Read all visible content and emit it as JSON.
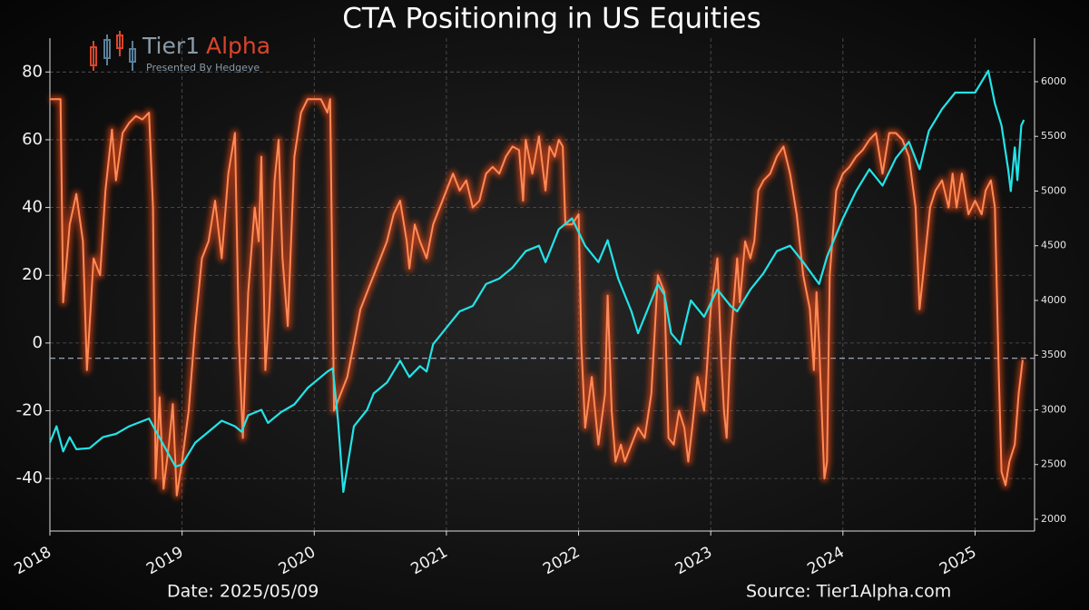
{
  "chart_data": {
    "type": "line",
    "title": "CTA Positioning in US Equities",
    "logo": {
      "brand": "Tier1",
      "accent": "Alpha",
      "tagline": "Presented By Hedgeye"
    },
    "footer_left": "Date: 2025/05/09",
    "footer_right": "Source: Tier1Alpha.com",
    "xlim": [
      2018,
      2025.45
    ],
    "xticks": [
      2018,
      2019,
      2020,
      2021,
      2022,
      2023,
      2024,
      2025
    ],
    "ylim": [
      -55.5,
      90
    ],
    "yticks": [
      -40,
      -20,
      0,
      20,
      40,
      60,
      80
    ],
    "y2lim": [
      1892,
      6398
    ],
    "y2ticks": [
      2000,
      2500,
      3000,
      3500,
      4000,
      4500,
      5000,
      5500,
      6000
    ],
    "reference_line": -4.5,
    "grid": true,
    "series": [
      {
        "color": "#ff4a12",
        "glow": true,
        "axis": "y",
        "x": [
          2018.0,
          2018.08,
          2018.1,
          2018.15,
          2018.2,
          2018.25,
          2018.28,
          2018.33,
          2018.38,
          2018.42,
          2018.47,
          2018.5,
          2018.55,
          2018.6,
          2018.65,
          2018.7,
          2018.75,
          2018.78,
          2018.8,
          2018.83,
          2018.86,
          2018.9,
          2018.93,
          2018.96,
          2019.0,
          2019.05,
          2019.1,
          2019.15,
          2019.2,
          2019.25,
          2019.3,
          2019.35,
          2019.4,
          2019.43,
          2019.46,
          2019.5,
          2019.55,
          2019.58,
          2019.6,
          2019.63,
          2019.66,
          2019.7,
          2019.73,
          2019.76,
          2019.8,
          2019.85,
          2019.9,
          2019.95,
          2020.05,
          2020.1,
          2020.12,
          2020.15,
          2020.2,
          2020.25,
          2020.3,
          2020.35,
          2020.4,
          2020.45,
          2020.5,
          2020.55,
          2020.6,
          2020.65,
          2020.7,
          2020.72,
          2020.76,
          2020.8,
          2020.85,
          2020.9,
          2020.95,
          2021.0,
          2021.05,
          2021.1,
          2021.15,
          2021.2,
          2021.25,
          2021.3,
          2021.35,
          2021.4,
          2021.45,
          2021.5,
          2021.55,
          2021.58,
          2021.6,
          2021.65,
          2021.7,
          2021.75,
          2021.78,
          2021.82,
          2021.85,
          2021.88,
          2021.9,
          2021.95,
          2022.0,
          2022.02,
          2022.05,
          2022.1,
          2022.15,
          2022.2,
          2022.22,
          2022.25,
          2022.28,
          2022.32,
          2022.35,
          2022.4,
          2022.45,
          2022.5,
          2022.55,
          2022.6,
          2022.65,
          2022.68,
          2022.72,
          2022.76,
          2022.8,
          2022.83,
          2022.86,
          2022.9,
          2022.95,
          2023.0,
          2023.05,
          2023.08,
          2023.1,
          2023.12,
          2023.15,
          2023.2,
          2023.22,
          2023.26,
          2023.3,
          2023.33,
          2023.36,
          2023.4,
          2023.45,
          2023.5,
          2023.55,
          2023.6,
          2023.65,
          2023.7,
          2023.75,
          2023.78,
          2023.8,
          2023.82,
          2023.86,
          2023.88,
          2023.9,
          2023.95,
          2024.0,
          2024.05,
          2024.1,
          2024.15,
          2024.2,
          2024.25,
          2024.3,
          2024.35,
          2024.4,
          2024.45,
          2024.5,
          2024.55,
          2024.58,
          2024.62,
          2024.66,
          2024.7,
          2024.75,
          2024.8,
          2024.83,
          2024.86,
          2024.9,
          2024.95,
          2025.0,
          2025.05,
          2025.08,
          2025.12,
          2025.15,
          2025.18,
          2025.2,
          2025.23,
          2025.26,
          2025.3,
          2025.33,
          2025.36
        ],
        "values": [
          72,
          72,
          12,
          35,
          44,
          30,
          -8,
          25,
          20,
          45,
          63,
          48,
          62,
          65,
          67,
          66,
          68,
          40,
          -40,
          -16,
          -43,
          -30,
          -18,
          -45,
          -35,
          -20,
          5,
          25,
          30,
          42,
          25,
          50,
          62,
          0,
          -28,
          15,
          40,
          30,
          55,
          -8,
          10,
          48,
          60,
          25,
          5,
          55,
          68,
          72,
          72,
          68,
          72,
          -20,
          -15,
          -10,
          0,
          10,
          15,
          20,
          25,
          30,
          38,
          42,
          30,
          22,
          35,
          30,
          25,
          35,
          40,
          45,
          50,
          45,
          48,
          40,
          42,
          50,
          52,
          50,
          55,
          58,
          57,
          42,
          60,
          50,
          61,
          45,
          58,
          55,
          60,
          58,
          35,
          35,
          38,
          0,
          -25,
          -10,
          -30,
          -15,
          14,
          -20,
          -35,
          -30,
          -35,
          -30,
          -25,
          -28,
          -15,
          20,
          15,
          -28,
          -30,
          -20,
          -25,
          -35,
          -25,
          -10,
          -20,
          10,
          25,
          -5,
          -20,
          -28,
          0,
          25,
          12,
          30,
          25,
          30,
          45,
          48,
          50,
          55,
          58,
          50,
          38,
          20,
          10,
          -8,
          15,
          0,
          -40,
          -35,
          20,
          45,
          50,
          52,
          55,
          57,
          60,
          62,
          50,
          62,
          62,
          60,
          55,
          40,
          10,
          25,
          40,
          45,
          48,
          40,
          50,
          40,
          50,
          38,
          42,
          38,
          45,
          48,
          40,
          -10,
          -38,
          -42,
          -35,
          -30,
          -15,
          -5
        ]
      },
      {
        "color": "#22e4e8",
        "glow": false,
        "axis": "y2",
        "x": [
          2018.0,
          2018.05,
          2018.1,
          2018.15,
          2018.2,
          2018.3,
          2018.4,
          2018.5,
          2018.6,
          2018.75,
          2018.85,
          2018.95,
          2019.0,
          2019.1,
          2019.2,
          2019.3,
          2019.4,
          2019.45,
          2019.5,
          2019.6,
          2019.65,
          2019.75,
          2019.85,
          2019.95,
          2020.1,
          2020.14,
          2020.18,
          2020.22,
          2020.3,
          2020.4,
          2020.45,
          2020.55,
          2020.65,
          2020.72,
          2020.8,
          2020.85,
          2020.9,
          2021.0,
          2021.1,
          2021.2,
          2021.3,
          2021.4,
          2021.5,
          2021.6,
          2021.7,
          2021.75,
          2021.85,
          2021.95,
          2022.05,
          2022.15,
          2022.22,
          2022.3,
          2022.4,
          2022.45,
          2022.5,
          2022.6,
          2022.65,
          2022.7,
          2022.77,
          2022.85,
          2022.95,
          2023.05,
          2023.15,
          2023.2,
          2023.3,
          2023.4,
          2023.5,
          2023.6,
          2023.7,
          2023.82,
          2023.88,
          2024.0,
          2024.1,
          2024.2,
          2024.3,
          2024.4,
          2024.5,
          2024.58,
          2024.65,
          2024.75,
          2024.85,
          2024.95,
          2025.0,
          2025.1,
          2025.15,
          2025.2,
          2025.25,
          2025.27,
          2025.3,
          2025.32,
          2025.35,
          2025.37
        ],
        "values": [
          2700,
          2850,
          2620,
          2750,
          2640,
          2650,
          2750,
          2780,
          2850,
          2920,
          2700,
          2480,
          2500,
          2700,
          2800,
          2900,
          2850,
          2800,
          2950,
          3000,
          2880,
          2980,
          3050,
          3200,
          3350,
          3380,
          2900,
          2250,
          2850,
          3000,
          3150,
          3250,
          3450,
          3300,
          3400,
          3350,
          3600,
          3750,
          3900,
          3950,
          4150,
          4200,
          4300,
          4450,
          4500,
          4350,
          4650,
          4750,
          4500,
          4350,
          4550,
          4200,
          3900,
          3700,
          3850,
          4150,
          4050,
          3700,
          3600,
          4000,
          3850,
          4100,
          3950,
          3900,
          4100,
          4250,
          4450,
          4500,
          4350,
          4150,
          4400,
          4750,
          5000,
          5200,
          5050,
          5300,
          5450,
          5200,
          5550,
          5750,
          5900,
          5900,
          5900,
          6100,
          5800,
          5600,
          5200,
          5000,
          5400,
          5100,
          5600,
          5650
        ]
      }
    ]
  }
}
